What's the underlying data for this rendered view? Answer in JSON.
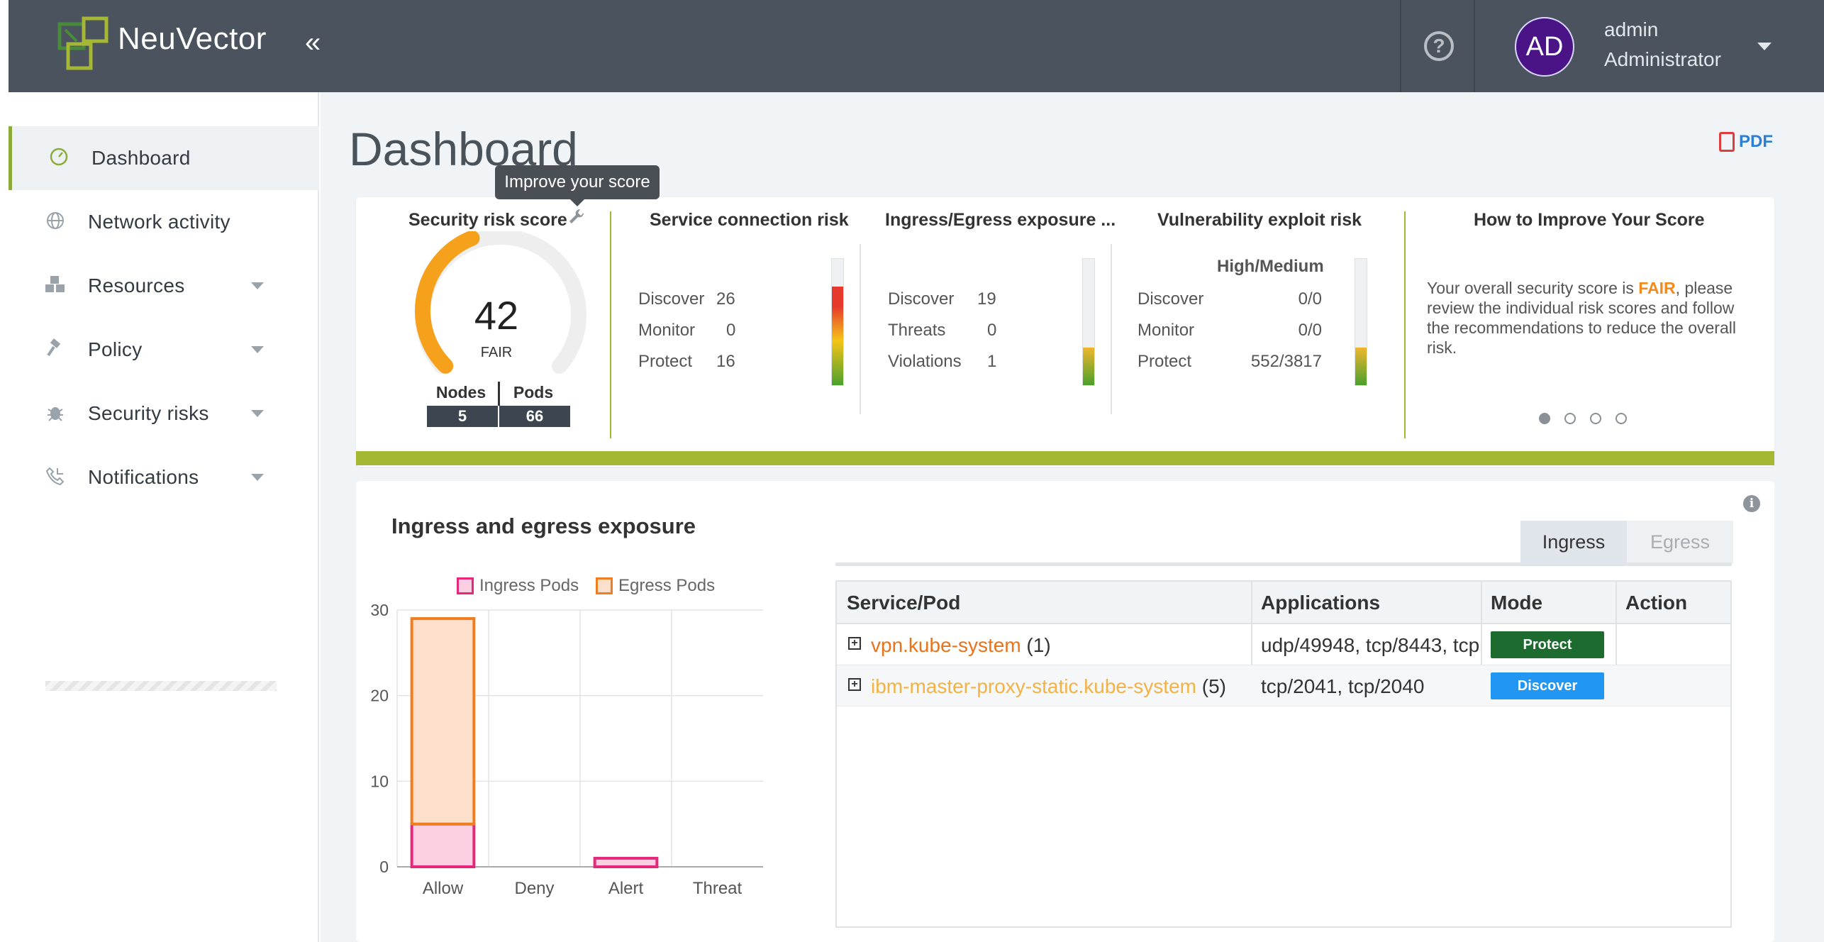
{
  "header": {
    "brand": "NeuVector",
    "collapse_glyph": "«",
    "help_glyph": "?",
    "avatar_initials": "AD",
    "user_name": "admin",
    "user_role": "Administrator"
  },
  "sidebar": {
    "items": [
      {
        "label": "Dashboard",
        "icon": "gauge-icon",
        "active": true,
        "has_caret": false
      },
      {
        "label": "Network activity",
        "icon": "globe-icon",
        "active": false,
        "has_caret": false
      },
      {
        "label": "Resources",
        "icon": "cubes-icon",
        "active": false,
        "has_caret": true
      },
      {
        "label": "Policy",
        "icon": "gavel-icon",
        "active": false,
        "has_caret": true
      },
      {
        "label": "Security risks",
        "icon": "bug-icon",
        "active": false,
        "has_caret": true
      },
      {
        "label": "Notifications",
        "icon": "phone-icon",
        "active": false,
        "has_caret": true
      }
    ]
  },
  "page": {
    "title": "Dashboard",
    "pdf_label": "PDF"
  },
  "score_card": {
    "tooltip": "Improve your score",
    "security_risk": {
      "title": "Security risk score",
      "score": "42",
      "score_value": 42,
      "rating": "FAIR",
      "nodes_label": "Nodes",
      "pods_label": "Pods",
      "nodes": "5",
      "pods": "66"
    },
    "service_connection": {
      "title": "Service connection risk",
      "rows": [
        {
          "label": "Discover",
          "value": "26"
        },
        {
          "label": "Monitor",
          "value": "0"
        },
        {
          "label": "Protect",
          "value": "16"
        }
      ]
    },
    "ingress_egress": {
      "title": "Ingress/Egress exposure ...",
      "rows": [
        {
          "label": "Discover",
          "value": "19"
        },
        {
          "label": "Threats",
          "value": "0"
        },
        {
          "label": "Violations",
          "value": "1"
        }
      ]
    },
    "vulnerability": {
      "title": "Vulnerability exploit risk",
      "subheader": "High/Medium",
      "rows": [
        {
          "label": "Discover",
          "value": "0/0"
        },
        {
          "label": "Monitor",
          "value": "0/0"
        },
        {
          "label": "Protect",
          "value": "552/3817"
        }
      ]
    },
    "improve": {
      "title": "How to Improve Your Score",
      "text_before": "Your overall security score is ",
      "text_rating": "FAIR",
      "text_after": ", please review the individual risk scores and follow the recommendations to reduce the overall risk."
    }
  },
  "exposure": {
    "title": "Ingress and egress exposure",
    "tabs": [
      {
        "label": "Ingress",
        "active": true
      },
      {
        "label": "Egress",
        "active": false
      }
    ],
    "table": {
      "columns": [
        "Service/Pod",
        "Applications",
        "Mode",
        "Action"
      ],
      "rows": [
        {
          "service": "vpn.kube-system",
          "count": "(1)",
          "applications": "udp/49948, tcp/8443, tcp",
          "mode": "Protect",
          "mode_color": "#1e6b2f",
          "service_color": "#e8731a",
          "action": ""
        },
        {
          "service": "ibm-master-proxy-static.kube-system",
          "count": "(5)",
          "applications": "tcp/2041, tcp/2040",
          "mode": "Discover",
          "mode_color": "#2196f3",
          "service_color": "#f2b244",
          "action": ""
        }
      ]
    }
  },
  "chart_data": {
    "type": "bar",
    "stacked": true,
    "categories": [
      "Allow",
      "Deny",
      "Alert",
      "Threat"
    ],
    "series": [
      {
        "name": "Ingress Pods",
        "values": [
          5,
          0,
          1,
          0
        ],
        "color": "#e6287a",
        "fill": "#fccfe3"
      },
      {
        "name": "Egress Pods",
        "values": [
          24,
          0,
          0,
          0
        ],
        "color": "#f07d1e",
        "fill": "#fde0cc"
      }
    ],
    "yticks": [
      0,
      10,
      20,
      30
    ],
    "ylim": [
      0,
      30
    ],
    "legend_position": "top",
    "grid": true
  },
  "colors": {
    "header_bg": "#4b535e",
    "accent_green": "#a6b734",
    "gauge_orange": "#f5a11c",
    "link_blue": "#2d7fd3"
  }
}
